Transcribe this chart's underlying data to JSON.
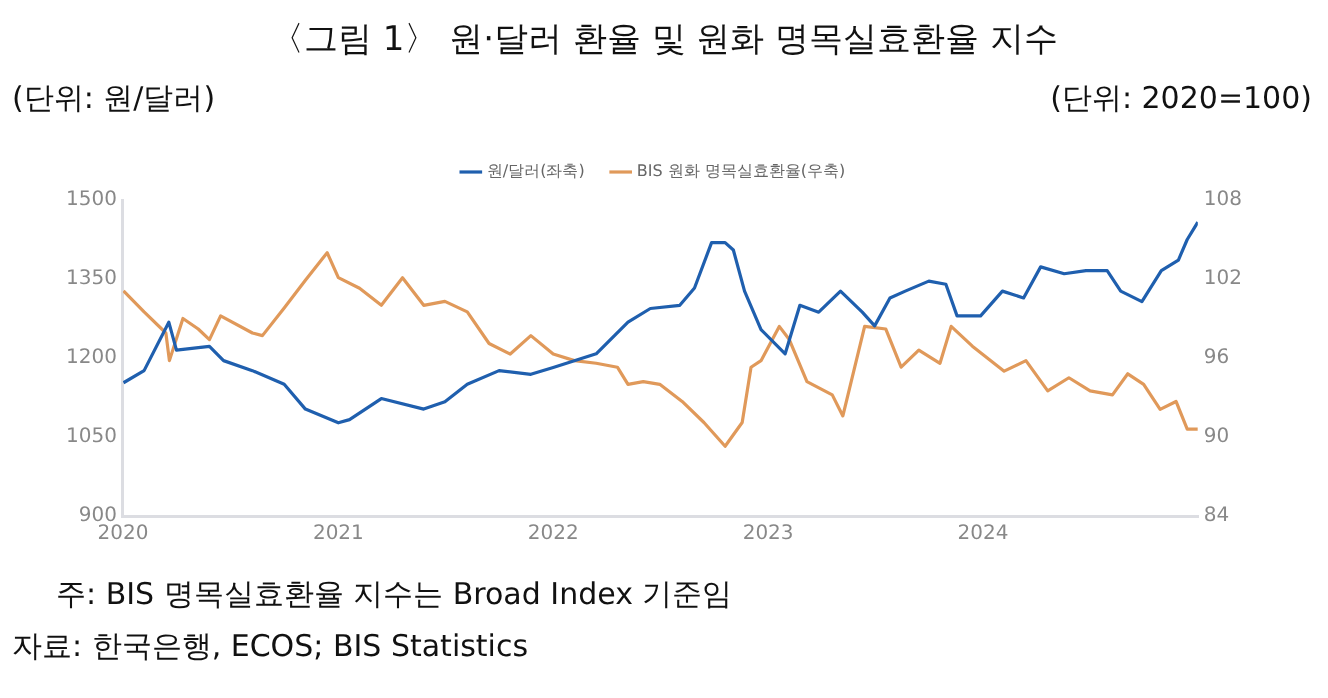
{
  "chart_data": {
    "type": "line",
    "title": "〈그림 1〉 원·달러 환율 및 원화 명목실효환율 지수",
    "ylabel": "(단위: 원/달러)",
    "y2label": "(단위: 2020=100)",
    "annotations": [
      "주: BIS 명목실효환율 지수는 Broad Index 기준임",
      "자료: 한국은행, ECOS; BIS Statistics"
    ],
    "xlim": [
      "2020-01-01",
      "2024-12-31"
    ],
    "xticks": [
      {
        "value": "2020-01-01",
        "label": "2020"
      },
      {
        "value": "2021-01-01",
        "label": "2021"
      },
      {
        "value": "2022-01-01",
        "label": "2022"
      },
      {
        "value": "2023-01-01",
        "label": "2023"
      },
      {
        "value": "2024-01-01",
        "label": "2024"
      }
    ],
    "ylim": [
      900,
      1500
    ],
    "yticks": [
      900,
      1050,
      1200,
      1350,
      1500
    ],
    "y2lim": [
      84,
      108
    ],
    "y2ticks": [
      84,
      90,
      96,
      102,
      108
    ],
    "grid": false,
    "legend": "top",
    "marker": "none",
    "line_style": "solid",
    "series": [
      {
        "name": "원/달러(좌축)",
        "color": "#1f5fae",
        "x": [
          "2020-01-02",
          "2020-02-06",
          "2020-03-19",
          "2020-04-01",
          "2020-05-27",
          "2020-06-20",
          "2020-08-08",
          "2020-10-01",
          "2020-11-06",
          "2021-01-01",
          "2021-01-20",
          "2021-03-15",
          "2021-05-26",
          "2021-07-01",
          "2021-08-08",
          "2021-10-01",
          "2021-11-24",
          "2022-01-01",
          "2022-03-15",
          "2022-05-08",
          "2022-06-15",
          "2022-08-04",
          "2022-08-29",
          "2022-09-27",
          "2022-10-20",
          "2022-11-03",
          "2022-11-22",
          "2022-12-20",
          "2023-01-30",
          "2023-02-24",
          "2023-03-28",
          "2023-05-04",
          "2023-06-10",
          "2023-07-01",
          "2023-07-27",
          "2023-08-22",
          "2023-10-01",
          "2023-10-30",
          "2023-11-18",
          "2023-12-28",
          "2024-02-03",
          "2024-03-10",
          "2024-04-08",
          "2024-05-18",
          "2024-06-24",
          "2024-07-30",
          "2024-08-22",
          "2024-09-27",
          "2024-10-30",
          "2024-11-28",
          "2024-12-13",
          "2024-12-31"
        ],
        "values": [
          1153,
          1176,
          1268,
          1215,
          1222,
          1195,
          1176,
          1150,
          1103,
          1077,
          1083,
          1123,
          1103,
          1117,
          1150,
          1176,
          1169,
          1182,
          1208,
          1268,
          1294,
          1300,
          1333,
          1419,
          1419,
          1405,
          1327,
          1254,
          1208,
          1300,
          1287,
          1327,
          1287,
          1261,
          1314,
          1327,
          1346,
          1340,
          1280,
          1280,
          1327,
          1314,
          1373,
          1360,
          1366,
          1366,
          1327,
          1307,
          1366,
          1386,
          1425,
          1458
        ]
      },
      {
        "name": "BIS 원화 명목실효환율(우축)",
        "color": "#e0995a",
        "axis": "y2",
        "x": [
          "2020-01-02",
          "2020-02-06",
          "2020-03-14",
          "2020-03-20",
          "2020-04-12",
          "2020-05-08",
          "2020-05-27",
          "2020-06-15",
          "2020-08-08",
          "2020-08-25",
          "2020-10-01",
          "2020-11-06",
          "2020-12-13",
          "2021-01-01",
          "2021-02-06",
          "2021-03-15",
          "2021-04-20",
          "2021-05-26",
          "2021-07-01",
          "2021-08-08",
          "2021-09-14",
          "2021-10-20",
          "2021-11-24",
          "2022-01-01",
          "2022-02-06",
          "2022-03-15",
          "2022-04-20",
          "2022-05-08",
          "2022-06-03",
          "2022-07-01",
          "2022-08-08",
          "2022-09-14",
          "2022-10-20",
          "2022-11-18",
          "2022-12-03",
          "2022-12-20",
          "2023-01-20",
          "2023-02-06",
          "2023-03-08",
          "2023-04-20",
          "2023-05-08",
          "2023-06-14",
          "2023-07-20",
          "2023-08-15",
          "2023-09-14",
          "2023-10-20",
          "2023-11-08",
          "2023-12-14",
          "2024-02-06",
          "2024-03-14",
          "2024-04-20",
          "2024-05-26",
          "2024-07-01",
          "2024-08-08",
          "2024-09-03",
          "2024-09-30",
          "2024-10-28",
          "2024-11-24",
          "2024-12-13",
          "2024-12-31"
        ],
        "values": [
          101.1,
          99.5,
          97.9,
          95.8,
          99.0,
          98.2,
          97.4,
          99.2,
          97.9,
          97.7,
          99.8,
          101.9,
          104.0,
          102.1,
          101.3,
          100.0,
          102.1,
          100.0,
          100.3,
          99.5,
          97.1,
          96.3,
          97.7,
          96.3,
          95.8,
          95.6,
          95.3,
          94.0,
          94.2,
          94.0,
          92.7,
          91.1,
          89.3,
          91.1,
          95.3,
          95.8,
          98.4,
          97.4,
          94.2,
          93.2,
          91.6,
          98.4,
          98.2,
          95.3,
          96.6,
          95.6,
          98.4,
          96.9,
          95.0,
          95.8,
          93.5,
          94.5,
          93.5,
          93.2,
          94.8,
          94.0,
          92.1,
          92.7,
          90.6,
          90.6
        ]
      }
    ]
  }
}
